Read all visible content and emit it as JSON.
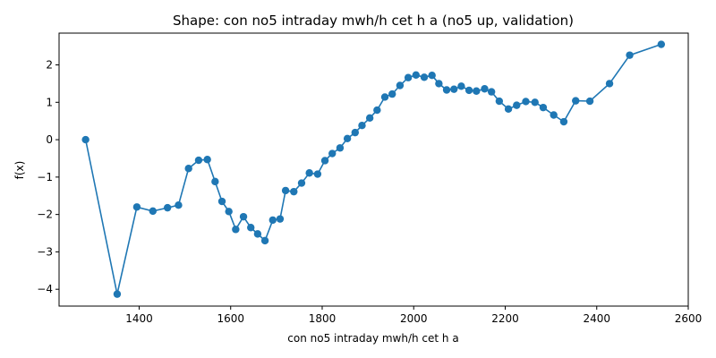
{
  "chart_data": {
    "type": "line",
    "title": "Shape: con no5 intraday mwh/h cet h a (no5 up, validation)",
    "xlabel": "con no5 intraday mwh/h cet h a",
    "ylabel": "f(x)",
    "xlim": [
      1225,
      2600
    ],
    "ylim": [
      -4.45,
      2.85
    ],
    "xticks": [
      1400,
      1600,
      1800,
      2000,
      2200,
      2400,
      2600
    ],
    "yticks": [
      -4,
      -3,
      -2,
      -1,
      0,
      1,
      2
    ],
    "xtick_labels": [
      "1400",
      "1600",
      "1800",
      "2000",
      "2200",
      "2400",
      "2600"
    ],
    "ytick_labels": [
      "−4",
      "−3",
      "−2",
      "−1",
      "0",
      "1",
      "2"
    ],
    "grid": false,
    "color": "#1f77b4",
    "series": [
      {
        "x": [
          1283,
          1352,
          1395,
          1430,
          1462,
          1486,
          1508,
          1530,
          1549,
          1566,
          1581,
          1596,
          1611,
          1628,
          1644,
          1659,
          1675,
          1692,
          1708,
          1720,
          1738,
          1755,
          1772,
          1790,
          1806,
          1822,
          1839,
          1855,
          1872,
          1887,
          1904,
          1920,
          1937,
          1953,
          1970,
          1988,
          2005,
          2023,
          2040,
          2055,
          2072,
          2088,
          2104,
          2121,
          2137,
          2155,
          2170,
          2187,
          2207,
          2225,
          2245,
          2265,
          2283,
          2306,
          2328,
          2354,
          2385,
          2428,
          2472,
          2541
        ],
        "y": [
          0.0,
          -4.13,
          -1.8,
          -1.91,
          -1.82,
          -1.75,
          -0.77,
          -0.55,
          -0.53,
          -1.12,
          -1.65,
          -1.92,
          -2.4,
          -2.06,
          -2.35,
          -2.52,
          -2.7,
          -2.15,
          -2.12,
          -1.36,
          -1.39,
          -1.16,
          -0.89,
          -0.92,
          -0.56,
          -0.37,
          -0.22,
          0.03,
          0.19,
          0.38,
          0.58,
          0.79,
          1.14,
          1.22,
          1.45,
          1.66,
          1.73,
          1.67,
          1.72,
          1.5,
          1.33,
          1.35,
          1.43,
          1.32,
          1.3,
          1.36,
          1.28,
          1.03,
          0.82,
          0.92,
          1.02,
          1.0,
          0.86,
          0.66,
          0.48,
          1.04,
          1.03,
          1.5,
          2.26,
          2.55
        ]
      }
    ]
  }
}
